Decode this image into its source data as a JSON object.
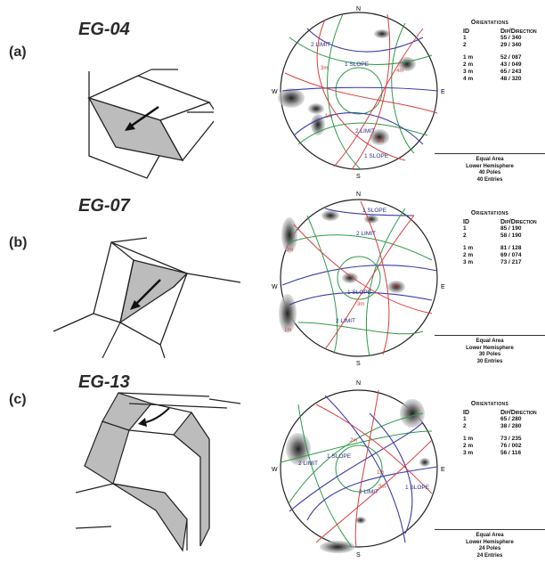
{
  "panels": [
    {
      "letter": "(a)",
      "site": "EG-04",
      "orientations_heading": "Orientations",
      "col_id": "ID",
      "col_dipdir": "Dip/Direction",
      "sets": [
        {
          "id": "1",
          "value": "55 / 340"
        },
        {
          "id": "2",
          "value": "29 / 340"
        }
      ],
      "means": [
        {
          "id": "1 m",
          "value": "52 / 087"
        },
        {
          "id": "2 m",
          "value": "43 / 049"
        },
        {
          "id": "3 m",
          "value": "65 / 243"
        },
        {
          "id": "4 m",
          "value": "48 / 320"
        }
      ],
      "footer": [
        "Equal Area",
        "Lower Hemisphere",
        "40 Poles",
        "40 Entries"
      ],
      "plot_labels": {
        "north": "N",
        "south": "S",
        "east": "E",
        "west": "W",
        "limit2": "2 LIMIT",
        "slope1": "1 SLOPE",
        "limit2b": "2 LIMIT",
        "slope1b": "1 SLOPE",
        "m1": "1m",
        "m2": "2m",
        "m3": "3m",
        "m4": "4m"
      }
    },
    {
      "letter": "(b)",
      "site": "EG-07",
      "orientations_heading": "Orientations",
      "col_id": "ID",
      "col_dipdir": "Dip/Direction",
      "sets": [
        {
          "id": "1",
          "value": "85 / 190"
        },
        {
          "id": "2",
          "value": "58 / 190"
        }
      ],
      "means": [
        {
          "id": "1 m",
          "value": "81 / 128"
        },
        {
          "id": "2 m",
          "value": "69 / 074"
        },
        {
          "id": "3 m",
          "value": "73 / 217"
        }
      ],
      "footer": [
        "Equal Area",
        "Lower Hemisphere",
        "30 Poles",
        "30 Entries"
      ],
      "plot_labels": {
        "north": "N",
        "south": "S",
        "east": "E",
        "west": "W",
        "slope1": "1 SLOPE",
        "limit2": "2 LIMIT",
        "slope1b": "1 SLOPE",
        "limit2b": "2 LIMIT",
        "m1": "1m",
        "m2": "2m",
        "m3": "3m"
      }
    },
    {
      "letter": "(c)",
      "site": "EG-13",
      "orientations_heading": "Orientations",
      "col_id": "ID",
      "col_dipdir": "Dip/Direction",
      "sets": [
        {
          "id": "1",
          "value": "65 / 280"
        },
        {
          "id": "2",
          "value": "38 / 280"
        }
      ],
      "means": [
        {
          "id": "1 m",
          "value": "73 / 235"
        },
        {
          "id": "2 m",
          "value": "76 / 002"
        },
        {
          "id": "3 m",
          "value": "56 / 116"
        }
      ],
      "footer": [
        "Equal Area",
        "Lower Hemisphere",
        "24 Poles",
        "24 Entries"
      ],
      "plot_labels": {
        "north": "N",
        "south": "S",
        "east": "E",
        "west": "W",
        "limit2": "2 LIMIT",
        "slope1": "1 SLOPE",
        "limit2b": "2 LIMIT",
        "slope1b": "1 SLOPE",
        "m1": "1m",
        "m2": "2m",
        "m3": "3m"
      }
    }
  ],
  "colors": {
    "great_circle_blue": "#3a3aa8",
    "great_circle_green": "#2e9a4a",
    "great_circle_red": "#d84040",
    "contour": "#9a9a9a",
    "label": "#2a2a80"
  }
}
